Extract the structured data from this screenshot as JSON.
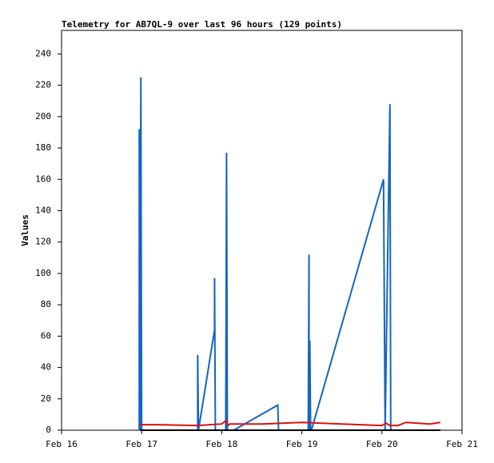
{
  "chart_data": {
    "type": "line",
    "title": "Telemetry for AB7QL-9 over last 96 hours (129 points)",
    "y_label": "Values",
    "xlim": [
      0,
      5
    ],
    "xticks": [
      {
        "value": 0,
        "label": "Feb 16"
      },
      {
        "value": 1,
        "label": "Feb 17"
      },
      {
        "value": 2,
        "label": "Feb 18"
      },
      {
        "value": 3,
        "label": "Feb 19"
      },
      {
        "value": 4,
        "label": "Feb 20"
      },
      {
        "value": 5,
        "label": "Feb 21"
      }
    ],
    "ylim": [
      0,
      255
    ],
    "yticks": [
      0,
      20,
      40,
      60,
      80,
      100,
      120,
      140,
      160,
      180,
      200,
      220,
      240
    ],
    "grid": false,
    "series": [
      {
        "color": "#1565c0",
        "x": [
          0.97,
          0.97,
          0.98,
          0.99,
          1.0,
          1.7,
          1.7,
          1.71,
          1.91,
          1.91,
          1.92,
          2.05,
          2.06,
          2.07,
          2.15,
          2.7,
          2.71,
          3.08,
          3.09,
          3.09,
          3.1,
          3.11,
          3.12,
          4.02,
          4.03,
          4.04,
          4.1,
          4.11
        ],
        "values": [
          0,
          192,
          0,
          225,
          0,
          0,
          48,
          0,
          64,
          97,
          0,
          0,
          177,
          0,
          0,
          16,
          0,
          0,
          112,
          0,
          57,
          0,
          0,
          160,
          80,
          0,
          208,
          0
        ]
      },
      {
        "color": "#dd1111",
        "x": [
          0.98,
          1.2,
          1.7,
          2.0,
          2.05,
          2.08,
          2.1,
          2.5,
          3.0,
          3.5,
          4.0,
          4.05,
          4.1,
          4.2,
          4.3,
          4.6,
          4.73
        ],
        "values": [
          3.5,
          3.5,
          3,
          4,
          6,
          3,
          4,
          4,
          5,
          4,
          3,
          4.5,
          3,
          3,
          5,
          4,
          5
        ]
      },
      {
        "color": "#000000",
        "x": [
          0.98,
          4.73
        ],
        "values": [
          0,
          0
        ]
      }
    ]
  }
}
